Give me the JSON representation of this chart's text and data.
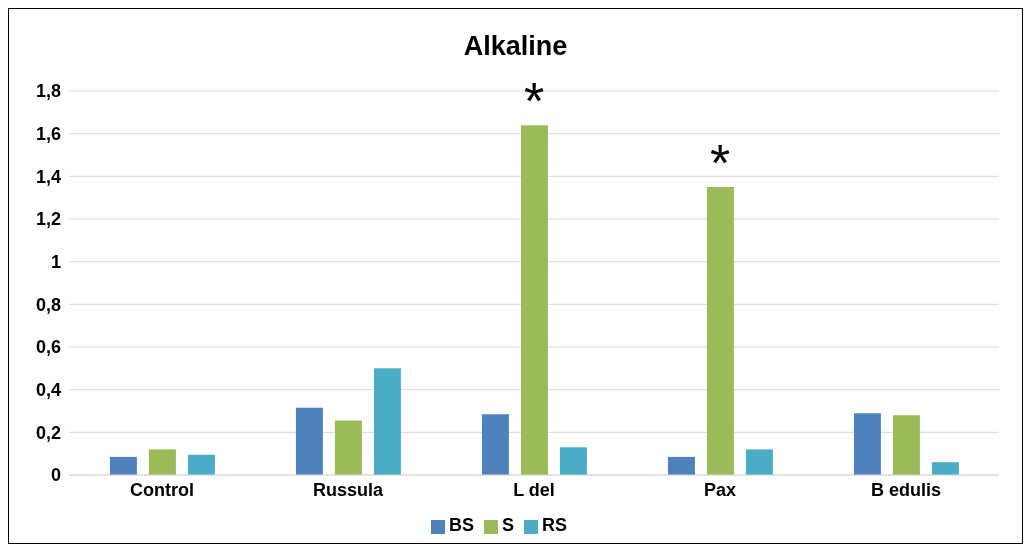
{
  "chart_data": {
    "type": "bar",
    "title": "Alkaline",
    "categories": [
      "Control",
      "Russula",
      "L del",
      "Pax",
      "B edulis"
    ],
    "series": [
      {
        "name": "BS",
        "color": "#4f81bd",
        "values": [
          0.085,
          0.315,
          0.285,
          0.085,
          0.29
        ]
      },
      {
        "name": "S",
        "color": "#9bbb59",
        "values": [
          0.12,
          0.255,
          1.64,
          1.35,
          0.28
        ]
      },
      {
        "name": "RS",
        "color": "#4bacc6",
        "values": [
          0.095,
          0.5,
          0.13,
          0.12,
          0.06
        ]
      }
    ],
    "ylim": [
      0,
      1.8
    ],
    "yticks": [
      0,
      {
        "value": 0.2,
        "label": "0,2"
      },
      {
        "value": 0.4,
        "label": "0,4"
      },
      {
        "value": 0.6,
        "label": "0,6"
      },
      {
        "value": 0.8,
        "label": "0,8"
      },
      1,
      {
        "value": 1.2,
        "label": "1,2"
      },
      {
        "value": 1.4,
        "label": "1,4"
      },
      {
        "value": 1.6,
        "label": "1,6"
      },
      {
        "value": 1.8,
        "label": "1,8"
      }
    ],
    "grid": "y",
    "legend": "bottom",
    "annotations": [
      {
        "text": "*",
        "x": "L del",
        "y": 1.64
      },
      {
        "text": "*",
        "x": "Pax",
        "y": 1.35
      }
    ]
  }
}
